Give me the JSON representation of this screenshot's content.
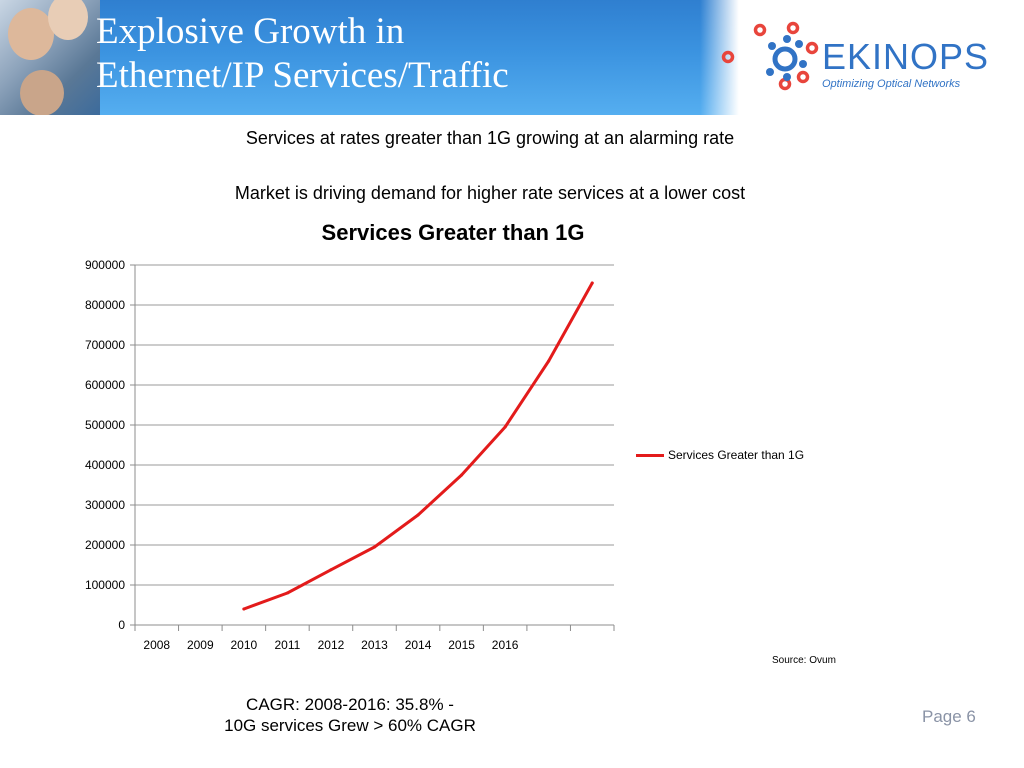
{
  "header": {
    "title_line1": "Explosive Growth in",
    "title_line2": "Ethernet/IP Services/Traffic",
    "logo_text": "EKINOPS",
    "logo_tagline": "Optimizing Optical Networks",
    "brand_color": "#3173c5",
    "accent_color": "#e8453c"
  },
  "subtitles": {
    "line1": "Services at rates greater than 1G growing at an alarming rate",
    "line2": "Market is driving demand for higher rate services at a lower cost"
  },
  "chart_data": {
    "type": "line",
    "title": "Services Greater than 1G",
    "categories": [
      "2008",
      "2009",
      "2010",
      "2011",
      "2012",
      "2013",
      "2014",
      "2015",
      "2016",
      "",
      ""
    ],
    "series": [
      {
        "name": "Services Greater than 1G",
        "color": "#e31b1b",
        "values": [
          null,
          null,
          40000,
          80000,
          138000,
          195000,
          275000,
          375000,
          495000,
          660000,
          855000
        ]
      }
    ],
    "ylim": [
      0,
      900000
    ],
    "yticks": [
      "0",
      "100000",
      "200000",
      "300000",
      "400000",
      "500000",
      "600000",
      "700000",
      "800000",
      "900000"
    ],
    "grid": true,
    "legend_position": "right"
  },
  "source": "Source: Ovum",
  "cagr": {
    "line1": "CAGR: 2008-2016:  35.8% -",
    "line2": "10G services Grew > 60% CAGR"
  },
  "page_label": "Page 6"
}
